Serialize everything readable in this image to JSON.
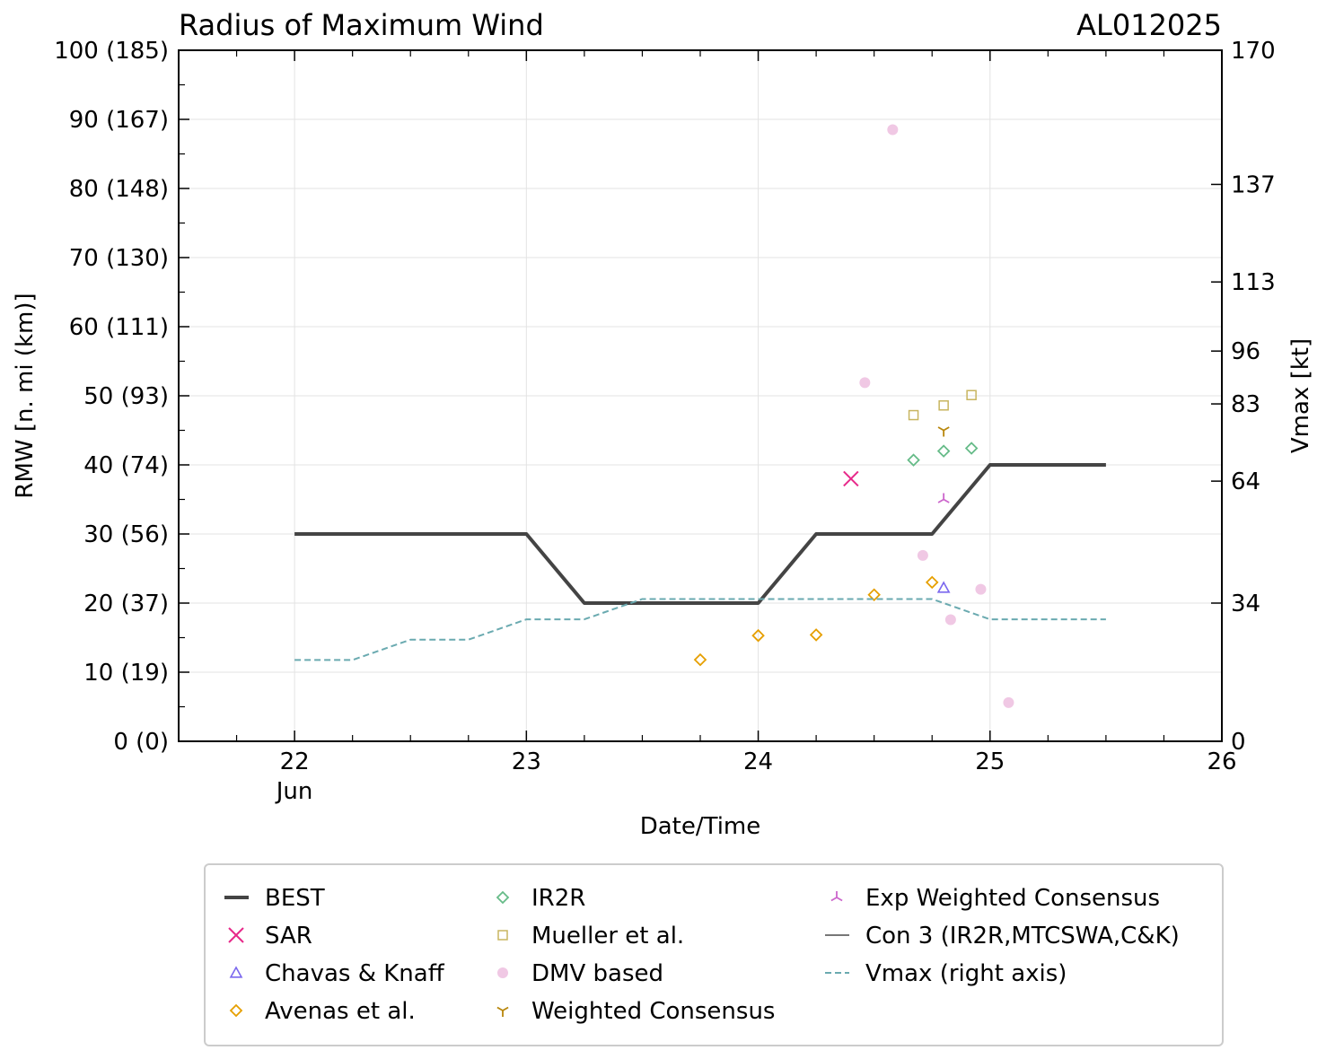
{
  "chart_data": {
    "type": "line",
    "title": "Radius of Maximum Wind",
    "storm_id": "AL012025",
    "xlabel": "Date/Time",
    "ylabel": "RMW [n. mi (km)]",
    "y2label": "Vmax [kt]",
    "xlim": [
      21.5,
      26
    ],
    "ylim": [
      0,
      100
    ],
    "y2lim": [
      0,
      170
    ],
    "x_ticks": [
      22,
      23,
      24,
      25,
      26
    ],
    "x_tick_labels": [
      "22",
      "23",
      "24",
      "25",
      "26"
    ],
    "x_month_label": "Jun",
    "y_ticks": [
      0,
      10,
      20,
      30,
      40,
      50,
      60,
      70,
      80,
      90,
      100
    ],
    "y_tick_labels": [
      "0 (0)",
      "10 (19)",
      "20 (37)",
      "30 (56)",
      "40 (74)",
      "50 (93)",
      "60 (111)",
      "70 (130)",
      "80 (148)",
      "90 (167)",
      "100 (185)"
    ],
    "y2_ticks": [
      0,
      34,
      64,
      83,
      96,
      113,
      137,
      170
    ],
    "y2_tick_labels": [
      "0",
      "34",
      "64",
      "83",
      "96",
      "113",
      "137",
      "170"
    ],
    "grid": true,
    "legend_position": "bottom",
    "colors": {
      "best": "#444444",
      "sar": "#e7298a",
      "chavas": "#7b68ee",
      "avenas": "#e69f00",
      "ir2r": "#66bb88",
      "mueller": "#c8b560",
      "dmv": "#f0c8e4",
      "weighted": "#b8860b",
      "exp_weighted": "#cc66cc",
      "con3": "#777777",
      "vmax": "#6aaab0"
    },
    "series": [
      {
        "key": "best",
        "name": "BEST",
        "kind": "line",
        "x": [
          22,
          23,
          23.25,
          24,
          24.25,
          24.75,
          25,
          25.5
        ],
        "y": [
          30,
          30,
          20,
          20,
          30,
          30,
          40,
          40
        ]
      },
      {
        "key": "sar",
        "name": "SAR",
        "kind": "x",
        "x": [
          24.4
        ],
        "y": [
          38
        ]
      },
      {
        "key": "chavas",
        "name": "Chavas & Knaff",
        "kind": "triangle",
        "x": [
          24.8
        ],
        "y": [
          22.2
        ]
      },
      {
        "key": "avenas",
        "name": "Avenas et al.",
        "kind": "diamond",
        "x": [
          23.75,
          24,
          24.25,
          24.5,
          24.75
        ],
        "y": [
          11.8,
          15.3,
          15.4,
          21.2,
          23
        ]
      },
      {
        "key": "ir2r",
        "name": "IR2R",
        "kind": "diamond",
        "x": [
          24.67,
          24.8,
          24.92
        ],
        "y": [
          40.7,
          42,
          42.4
        ]
      },
      {
        "key": "mueller",
        "name": "Mueller et al.",
        "kind": "square",
        "x": [
          24.67,
          24.8,
          24.92
        ],
        "y": [
          47.2,
          48.6,
          50.1
        ]
      },
      {
        "key": "dmv",
        "name": "DMV based",
        "kind": "circle",
        "x": [
          24.46,
          24.58,
          24.71,
          24.83,
          24.96,
          25.08
        ],
        "y": [
          51.9,
          88.5,
          26.9,
          17.6,
          22,
          5.6
        ]
      },
      {
        "key": "weighted",
        "name": "Weighted Consensus",
        "kind": "tri_down",
        "x": [
          24.8
        ],
        "y": [
          45
        ]
      },
      {
        "key": "exp_weighted",
        "name": "Exp Weighted Consensus",
        "kind": "tri_up",
        "x": [
          24.8
        ],
        "y": [
          35
        ]
      },
      {
        "key": "con3",
        "name": "Con 3 (IR2R,MTCSWA,C&K)",
        "kind": "line_thin",
        "x": [],
        "y": []
      },
      {
        "key": "vmax",
        "name": "Vmax (right axis)",
        "kind": "dashed",
        "axis": "right",
        "x": [
          22,
          22.25,
          22.5,
          22.75,
          23,
          23.25,
          23.5,
          23.75,
          24,
          24.25,
          24.5,
          24.75,
          25,
          25.25,
          25.5
        ],
        "y": [
          20,
          20,
          25,
          25,
          30,
          30,
          35,
          35,
          35,
          35,
          35,
          35,
          30,
          30,
          30
        ]
      }
    ],
    "legend_columns": [
      [
        "best",
        "sar",
        "chavas",
        "avenas"
      ],
      [
        "ir2r",
        "mueller",
        "dmv",
        "weighted"
      ],
      [
        "exp_weighted",
        "con3",
        "vmax"
      ]
    ]
  }
}
